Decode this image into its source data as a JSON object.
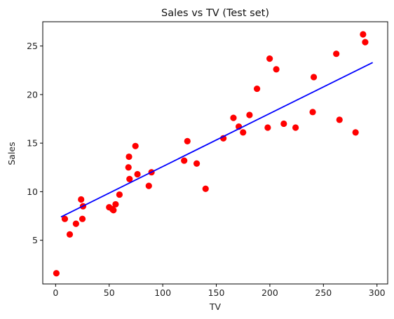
{
  "chart_data": {
    "type": "scatter",
    "title": "Sales vs TV (Test set)",
    "xlabel": "TV",
    "ylabel": "Sales",
    "xlim": [
      -12,
      310
    ],
    "ylim": [
      0.5,
      27.5
    ],
    "xticks": [
      0,
      50,
      100,
      150,
      200,
      250,
      300
    ],
    "yticks": [
      5,
      10,
      15,
      20,
      25
    ],
    "grid": false,
    "series": [
      {
        "kind": "scatter",
        "color": "#ff0000",
        "x": [
          0.7,
          8.6,
          13.2,
          19.0,
          23.8,
          25.0,
          25.6,
          50.0,
          53.0,
          54.0,
          56.0,
          59.6,
          68.0,
          68.5,
          69.0,
          74.5,
          76.4,
          87.0,
          89.5,
          120.0,
          123.0,
          131.7,
          140.0,
          156.6,
          166.0,
          171.0,
          175.0,
          181.0,
          188.0,
          198.0,
          199.8,
          206.0,
          213.0,
          224.0,
          240.0,
          241.0,
          262.0,
          265.0,
          280.0,
          287.0,
          289.0
        ],
        "y": [
          1.6,
          7.2,
          5.6,
          6.7,
          9.2,
          7.2,
          8.5,
          8.4,
          8.2,
          8.1,
          8.7,
          9.7,
          12.5,
          13.6,
          11.3,
          14.7,
          11.8,
          10.6,
          12.0,
          13.2,
          15.2,
          12.9,
          10.3,
          15.5,
          17.6,
          16.7,
          16.1,
          17.9,
          20.6,
          16.6,
          23.7,
          22.6,
          17.0,
          16.6,
          18.2,
          21.8,
          24.2,
          17.4,
          16.1,
          26.2,
          25.4
        ]
      },
      {
        "kind": "line",
        "color": "#0000ff",
        "x": [
          5.0,
          296.0
        ],
        "y": [
          7.4,
          23.3
        ]
      }
    ]
  }
}
